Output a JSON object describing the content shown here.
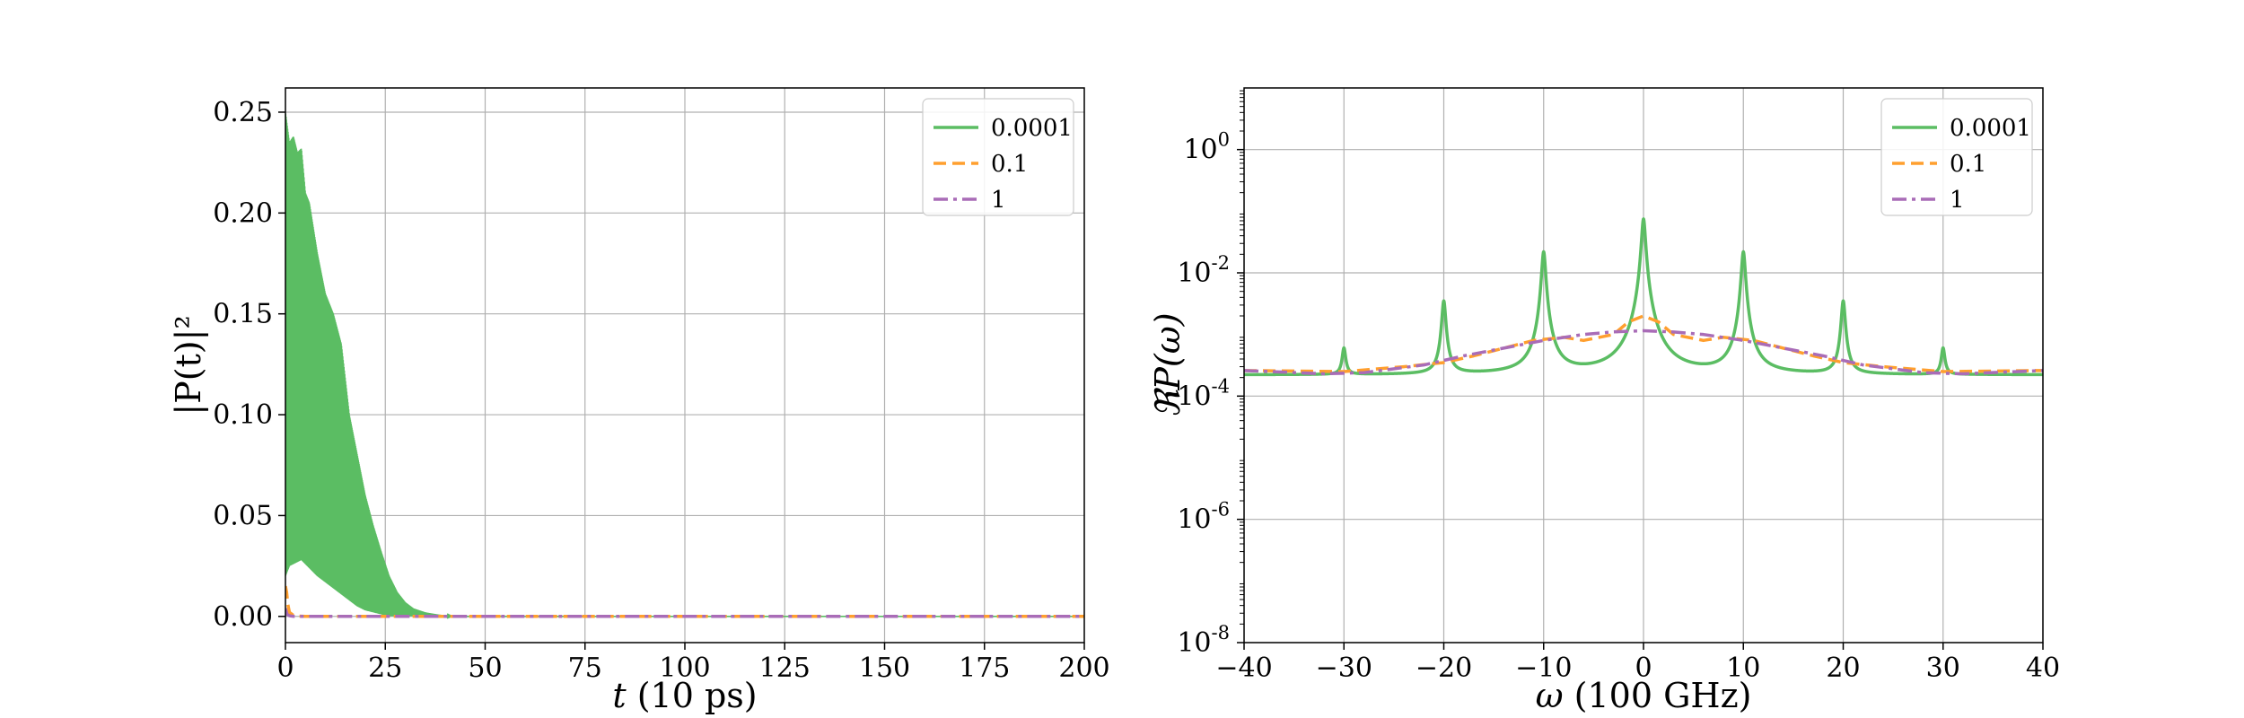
{
  "chart_data": [
    {
      "type": "line",
      "xlabel_italic": "t",
      "xlabel_rest": " (10 ps)",
      "ylabel": "|P(t)|²",
      "xlim": [
        0,
        200
      ],
      "ylim": [
        -0.013,
        0.262
      ],
      "xticks": [
        0,
        25,
        50,
        75,
        100,
        125,
        150,
        175,
        200
      ],
      "xtick_labels": [
        "0",
        "25",
        "50",
        "75",
        "100",
        "125",
        "150",
        "175",
        "200"
      ],
      "yticks": [
        0,
        0.05,
        0.1,
        0.15,
        0.2,
        0.25
      ],
      "ytick_labels": [
        "0.00",
        "0.05",
        "0.10",
        "0.15",
        "0.20",
        "0.25"
      ],
      "grid": true,
      "legend_position": "top-right",
      "series": [
        {
          "name": "0.0001",
          "color": "#5bbd63",
          "style": "solid",
          "envelope_t": [
            0,
            1,
            2,
            3,
            4,
            5,
            6,
            8,
            10,
            12,
            14,
            16,
            18,
            20,
            22,
            24,
            26,
            28,
            30,
            32,
            35,
            38,
            42
          ],
          "envelope_upper": [
            0.25,
            0.235,
            0.238,
            0.23,
            0.232,
            0.21,
            0.205,
            0.18,
            0.16,
            0.15,
            0.135,
            0.1,
            0.08,
            0.06,
            0.045,
            0.032,
            0.02,
            0.012,
            0.007,
            0.004,
            0.002,
            0.001,
            0.0
          ],
          "envelope_lower": [
            0.02,
            0.025,
            0.026,
            0.027,
            0.028,
            0.026,
            0.024,
            0.02,
            0.017,
            0.014,
            0.011,
            0.008,
            0.005,
            0.003,
            0.002,
            0.001,
            0.0,
            0.0,
            0.0,
            0.0,
            0.0,
            0.0,
            0.0
          ]
        },
        {
          "name": "0.1",
          "color": "#ff9f2e",
          "style": "dashed",
          "x": [
            0,
            0.3,
            0.6,
            1,
            2,
            3,
            5,
            200
          ],
          "y": [
            0.015,
            0.012,
            0.006,
            0.002,
            0.0005,
            0.0002,
            0.0,
            0.0
          ]
        },
        {
          "name": "1",
          "color": "#a96cb7",
          "style": "dashdot",
          "x": [
            0,
            0.4,
            1,
            2,
            200
          ],
          "y": [
            0.004,
            0.001,
            0.0003,
            0.0,
            0.0
          ]
        }
      ]
    },
    {
      "type": "line",
      "xlabel_italic": "ω",
      "xlabel_rest": " (100 GHz)",
      "ylabel": "ℜP(ω)",
      "xlim": [
        -40,
        40
      ],
      "ylim_log10": [
        -8,
        1
      ],
      "yscale": "log",
      "xticks": [
        -40,
        -30,
        -20,
        -10,
        0,
        10,
        20,
        30,
        40
      ],
      "xtick_labels": [
        "−40",
        "−30",
        "−20",
        "−10",
        "0",
        "10",
        "20",
        "30",
        "40"
      ],
      "yticks_log10": [
        -8,
        -6,
        -4,
        -2,
        0
      ],
      "ytick_bases": [
        "10",
        "10",
        "10",
        "10",
        "10"
      ],
      "ytick_exps": [
        "-8",
        "-6",
        "-4",
        "-2",
        "0"
      ],
      "grid": true,
      "legend_position": "top-right",
      "series": [
        {
          "name": "0.0001",
          "color": "#5bbd63",
          "style": "solid",
          "baseline": 0.00022,
          "peak_width": 0.18,
          "peaks": [
            {
              "x": -30,
              "y": 0.0006
            },
            {
              "x": -20,
              "y": 0.0035
            },
            {
              "x": -10,
              "y": 0.022
            },
            {
              "x": 0,
              "y": 0.075
            },
            {
              "x": 10,
              "y": 0.022
            },
            {
              "x": 20,
              "y": 0.0035
            },
            {
              "x": 30,
              "y": 0.0006
            }
          ]
        },
        {
          "name": "0.1",
          "color": "#ff9f2e",
          "style": "dashed",
          "x": [
            -40,
            -30,
            -24,
            -20,
            -17,
            -14,
            -11,
            -8,
            -6,
            -3,
            -1.5,
            0,
            1.5,
            3,
            6,
            8,
            11,
            14,
            17,
            20,
            24,
            30,
            40
          ],
          "y": [
            0.00026,
            0.00025,
            0.0003,
            0.00035,
            0.00045,
            0.0006,
            0.0008,
            0.0009,
            0.0008,
            0.001,
            0.0016,
            0.002,
            0.0016,
            0.001,
            0.0008,
            0.0009,
            0.0008,
            0.0006,
            0.00045,
            0.00035,
            0.0003,
            0.00025,
            0.00026
          ]
        },
        {
          "name": "1",
          "color": "#a96cb7",
          "style": "dashdot",
          "x": [
            -40,
            -32,
            -28,
            -22,
            -18,
            -14,
            -10,
            -6,
            -3,
            0,
            3,
            6,
            10,
            14,
            18,
            22,
            28,
            32,
            40
          ],
          "y": [
            0.00026,
            0.00023,
            0.00024,
            0.00032,
            0.00045,
            0.0006,
            0.0008,
            0.001,
            0.0011,
            0.00115,
            0.0011,
            0.001,
            0.0008,
            0.0006,
            0.00045,
            0.00032,
            0.00024,
            0.00023,
            0.00026
          ]
        }
      ]
    }
  ]
}
